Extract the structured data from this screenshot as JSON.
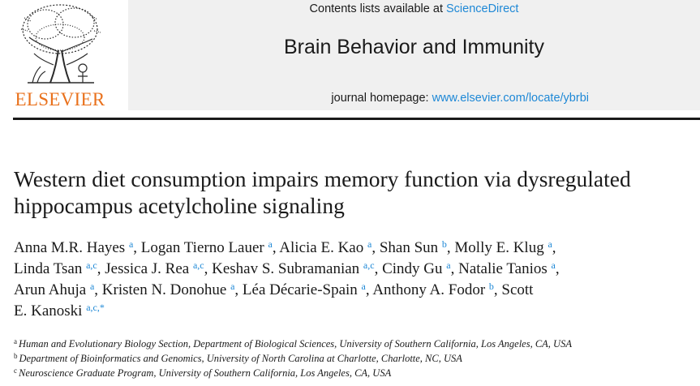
{
  "publisher": {
    "logo_text": "ELSEVIER"
  },
  "masthead": {
    "contents_prefix": "Contents lists available at ",
    "contents_link": "ScienceDirect",
    "journal_title": "Brain Behavior and Immunity",
    "homepage_prefix": "journal homepage: ",
    "homepage_link": "www.elsevier.com/locate/ybrbi"
  },
  "article": {
    "title_line1": "Western diet consumption impairs memory function via dysregulated",
    "title_line2": "hippocampus acetylcholine signaling"
  },
  "authors": [
    {
      "name": "Anna M.R. Hayes",
      "sup": "a"
    },
    {
      "name": "Logan Tierno Lauer",
      "sup": "a"
    },
    {
      "name": "Alicia E. Kao",
      "sup": "a"
    },
    {
      "name": "Shan Sun",
      "sup": "b"
    },
    {
      "name": "Molly E. Klug",
      "sup": "a"
    },
    {
      "name": "Linda Tsan",
      "sup": "a,c"
    },
    {
      "name": "Jessica J. Rea",
      "sup": "a,c"
    },
    {
      "name": "Keshav S. Subramanian",
      "sup": "a,c"
    },
    {
      "name": "Cindy Gu",
      "sup": "a"
    },
    {
      "name": "Natalie Tanios",
      "sup": "a"
    },
    {
      "name": "Arun Ahuja",
      "sup": "a"
    },
    {
      "name": "Kristen N. Donohue",
      "sup": "a"
    },
    {
      "name": "Léa Décarie-Spain",
      "sup": "a"
    },
    {
      "name": "Anthony A. Fodor",
      "sup": "b"
    },
    {
      "name": "Scott",
      "sup": ""
    },
    {
      "name": "E. Kanoski",
      "sup": "a,c,*"
    }
  ],
  "affiliations": [
    {
      "mark": "a",
      "text": "Human and Evolutionary Biology Section, Department of Biological Sciences, University of Southern California, Los Angeles, CA, USA"
    },
    {
      "mark": "b",
      "text": "Department of Bioinformatics and Genomics, University of North Carolina at Charlotte, Charlotte, NC, USA"
    },
    {
      "mark": "c",
      "text": "Neuroscience Graduate Program, University of Southern California, Los Angeles, CA, USA"
    }
  ],
  "colors": {
    "link": "#1e88d6",
    "elsevier_orange": "#e9711c",
    "masthead_bg": "#f0f0f0"
  }
}
